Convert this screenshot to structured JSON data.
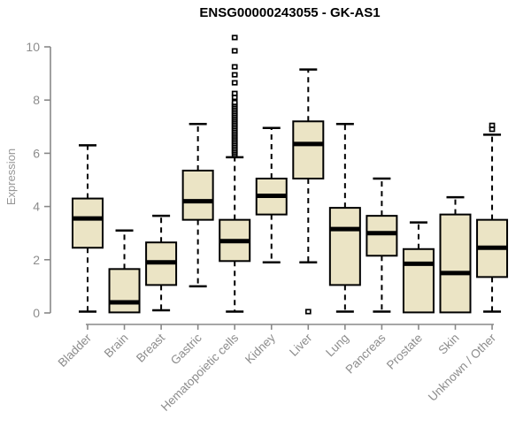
{
  "chart_data": {
    "type": "boxplot",
    "title": "ENSG00000243055 - GK-AS1",
    "ylabel": "Expression",
    "ylim": [
      0,
      10
    ],
    "yticks": [
      0,
      2,
      4,
      6,
      8,
      10
    ],
    "grid": false,
    "legend": "none",
    "box_fill": "#EBE4C5",
    "box_stroke": "#000000",
    "axis_color": "#888888",
    "tick_label_color": "#8c8c8c",
    "title_color": "#000000",
    "boxes": [
      {
        "category": "Bladder",
        "min": 0.05,
        "q1": 2.45,
        "median": 3.55,
        "q3": 4.3,
        "max": 6.3,
        "outliers": []
      },
      {
        "category": "Brain",
        "min": 0.02,
        "q1": 0.02,
        "median": 0.4,
        "q3": 1.65,
        "max": 3.1,
        "outliers": []
      },
      {
        "category": "Breast",
        "min": 0.1,
        "q1": 1.05,
        "median": 1.9,
        "q3": 2.65,
        "max": 3.65,
        "outliers": []
      },
      {
        "category": "Gastric",
        "min": 1.0,
        "q1": 3.5,
        "median": 4.2,
        "q3": 5.35,
        "max": 7.1,
        "outliers": []
      },
      {
        "category": "Hematopoietic cells",
        "min": 0.05,
        "q1": 1.95,
        "median": 2.7,
        "q3": 3.5,
        "max": 5.85,
        "outliers": [
          8.1,
          8.25,
          8.65,
          8.95,
          9.25,
          9.85,
          10.35
        ],
        "outlier_band": {
          "from": 5.95,
          "to": 7.95,
          "step": 0.07
        }
      },
      {
        "category": "Kidney",
        "min": 1.9,
        "q1": 3.7,
        "median": 4.4,
        "q3": 5.05,
        "max": 6.95,
        "outliers": []
      },
      {
        "category": "Liver",
        "min": 1.9,
        "q1": 5.05,
        "median": 6.35,
        "q3": 7.2,
        "max": 9.15,
        "outliers": [
          0.05
        ]
      },
      {
        "category": "Lung",
        "min": 0.05,
        "q1": 1.05,
        "median": 3.15,
        "q3": 3.95,
        "max": 7.1,
        "outliers": []
      },
      {
        "category": "Pancreas",
        "min": 0.05,
        "q1": 2.15,
        "median": 3.0,
        "q3": 3.65,
        "max": 5.05,
        "outliers": []
      },
      {
        "category": "Prostate",
        "min": 0.02,
        "q1": 0.02,
        "median": 1.85,
        "q3": 2.4,
        "max": 3.4,
        "outliers": []
      },
      {
        "category": "Skin",
        "min": 0.02,
        "q1": 0.02,
        "median": 1.5,
        "q3": 3.7,
        "max": 4.35,
        "outliers": []
      },
      {
        "category": "Unknown / Other",
        "min": 0.05,
        "q1": 1.35,
        "median": 2.45,
        "q3": 3.5,
        "max": 6.7,
        "outliers": [
          6.9,
          7.05
        ]
      }
    ]
  }
}
